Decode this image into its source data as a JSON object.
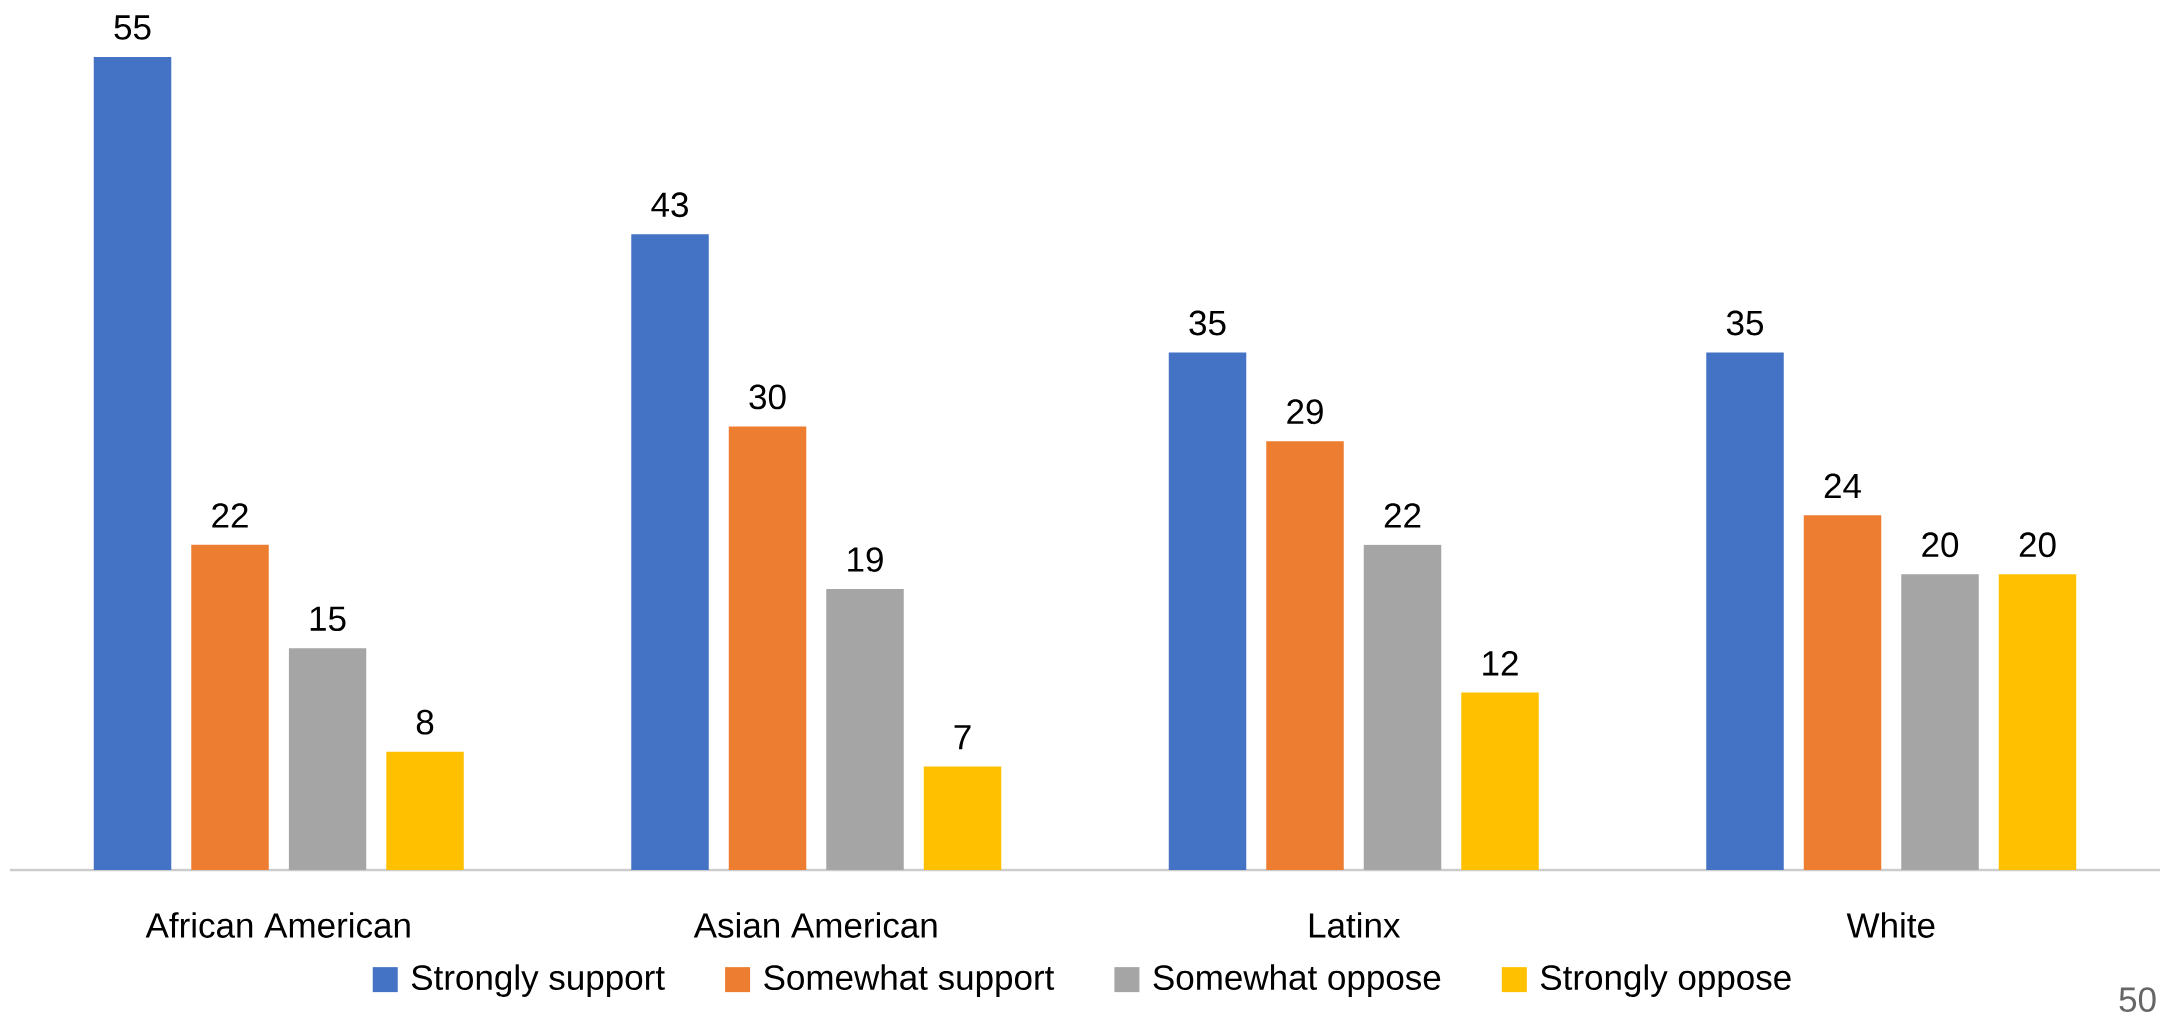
{
  "chart_data": {
    "type": "bar",
    "categories": [
      "African American",
      "Asian American",
      "Latinx",
      "White"
    ],
    "series": [
      {
        "name": "Strongly support",
        "color": "#4472c4",
        "values": [
          55,
          43,
          35,
          35
        ]
      },
      {
        "name": "Somewhat support",
        "color": "#ed7d31",
        "values": [
          22,
          30,
          29,
          24
        ]
      },
      {
        "name": "Somewhat oppose",
        "color": "#a5a5a5",
        "values": [
          15,
          19,
          22,
          20
        ]
      },
      {
        "name": "Strongly oppose",
        "color": "#ffc000",
        "values": [
          8,
          7,
          12,
          20
        ]
      }
    ],
    "data_labels": true,
    "legend": "bottom",
    "annotations": [
      "50"
    ]
  }
}
